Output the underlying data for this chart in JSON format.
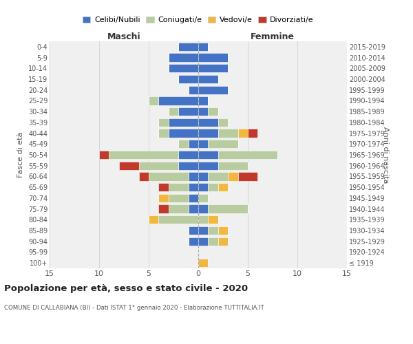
{
  "age_groups": [
    "100+",
    "95-99",
    "90-94",
    "85-89",
    "80-84",
    "75-79",
    "70-74",
    "65-69",
    "60-64",
    "55-59",
    "50-54",
    "45-49",
    "40-44",
    "35-39",
    "30-34",
    "25-29",
    "20-24",
    "15-19",
    "10-14",
    "5-9",
    "0-4"
  ],
  "birth_years": [
    "≤ 1919",
    "1920-1924",
    "1925-1929",
    "1930-1934",
    "1935-1939",
    "1940-1944",
    "1945-1949",
    "1950-1954",
    "1955-1959",
    "1960-1964",
    "1965-1969",
    "1970-1974",
    "1975-1979",
    "1980-1984",
    "1985-1989",
    "1990-1994",
    "1995-1999",
    "2000-2004",
    "2005-2009",
    "2010-2014",
    "2015-2019"
  ],
  "colors": {
    "celibi": "#4472c4",
    "coniugati": "#b8cca0",
    "vedovi": "#f0b840",
    "divorziati": "#c0392b"
  },
  "maschi": {
    "celibi": [
      0,
      0,
      1,
      1,
      0,
      1,
      1,
      1,
      1,
      2,
      2,
      1,
      3,
      3,
      2,
      4,
      1,
      2,
      3,
      3,
      2
    ],
    "coniugati": [
      0,
      0,
      0,
      0,
      4,
      2,
      2,
      2,
      4,
      4,
      7,
      1,
      1,
      1,
      1,
      1,
      0,
      0,
      0,
      0,
      0
    ],
    "vedovi": [
      0,
      0,
      0,
      0,
      1,
      0,
      1,
      0,
      0,
      0,
      0,
      0,
      0,
      0,
      0,
      0,
      0,
      0,
      0,
      0,
      0
    ],
    "divorziati": [
      0,
      0,
      0,
      0,
      0,
      1,
      0,
      1,
      1,
      2,
      1,
      0,
      0,
      0,
      0,
      0,
      0,
      0,
      0,
      0,
      0
    ]
  },
  "femmine": {
    "celibi": [
      0,
      0,
      1,
      1,
      0,
      1,
      0,
      1,
      1,
      2,
      2,
      1,
      2,
      2,
      1,
      1,
      3,
      2,
      3,
      3,
      1
    ],
    "coniugati": [
      0,
      0,
      1,
      1,
      1,
      4,
      1,
      1,
      2,
      3,
      6,
      3,
      2,
      1,
      1,
      0,
      0,
      0,
      0,
      0,
      0
    ],
    "vedovi": [
      1,
      0,
      1,
      1,
      1,
      0,
      0,
      1,
      1,
      0,
      0,
      0,
      1,
      0,
      0,
      0,
      0,
      0,
      0,
      0,
      0
    ],
    "divorziati": [
      0,
      0,
      0,
      0,
      0,
      0,
      0,
      0,
      2,
      0,
      0,
      0,
      1,
      0,
      0,
      0,
      0,
      0,
      0,
      0,
      0
    ]
  },
  "xlim": 15,
  "title": "Popolazione per età, sesso e stato civile - 2020",
  "subtitle": "COMUNE DI CALLABIANA (BI) - Dati ISTAT 1° gennaio 2020 - Elaborazione TUTTITALIA.IT",
  "ylabel_left": "Fasce di età",
  "ylabel_right": "Anni di nascita",
  "xlabel_left": "Maschi",
  "xlabel_right": "Femmine",
  "legend_labels": [
    "Celibi/Nubili",
    "Coniugati/e",
    "Vedovi/e",
    "Divorziati/e"
  ],
  "background": "#f0f0f0"
}
